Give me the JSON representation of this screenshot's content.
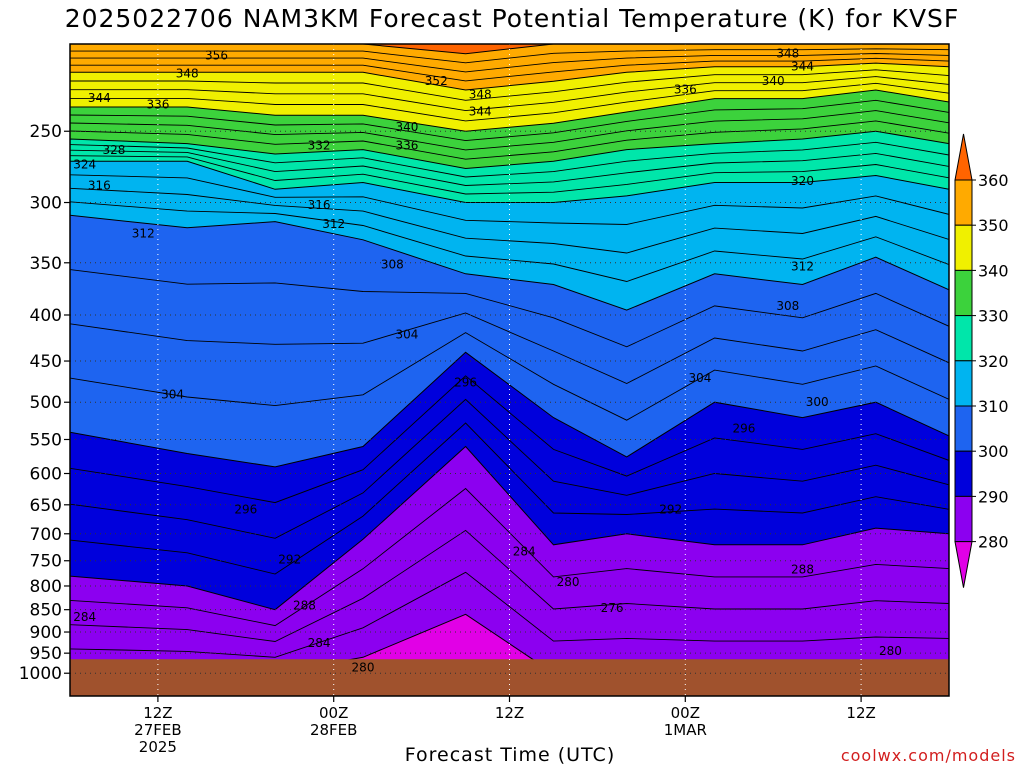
{
  "title": "2025022706 NAM3KM Forecast Potential Temperature (K) for KVSF",
  "xlabel": "Forecast Time (UTC)",
  "credit": "coolwx.com/models",
  "chart_data": {
    "type": "filled-contour",
    "title": "2025022706 NAM3KM Forecast Potential Temperature (K) for KVSF",
    "xlabel": "Forecast Time (UTC)",
    "ylabel": "",
    "units": "K",
    "x_range_hours": [
      0,
      60
    ],
    "y_axis": {
      "name": "pressure",
      "units": "hPa",
      "scale": "log",
      "reversed": true,
      "range": [
        1060,
        200
      ]
    },
    "y_ticks": [
      250,
      300,
      350,
      400,
      450,
      500,
      550,
      600,
      650,
      700,
      750,
      800,
      850,
      900,
      950,
      1000
    ],
    "x_ticks": [
      {
        "hour": 6,
        "lines": [
          "12Z",
          "27FEB",
          "2025"
        ]
      },
      {
        "hour": 18,
        "lines": [
          "00Z",
          "28FEB"
        ]
      },
      {
        "hour": 30,
        "lines": [
          "12Z"
        ]
      },
      {
        "hour": 42,
        "lines": [
          "00Z",
          "1MAR"
        ]
      },
      {
        "hour": 54,
        "lines": [
          "12Z"
        ]
      }
    ],
    "grid": true,
    "colorbar": {
      "placement": "right",
      "ticks": [
        360,
        350,
        340,
        330,
        320,
        310,
        300,
        290,
        280
      ],
      "levels": [
        {
          "min": 270,
          "max": 280,
          "color": "#e100e6"
        },
        {
          "min": 280,
          "max": 290,
          "color": "#8c00f0"
        },
        {
          "min": 290,
          "max": 300,
          "color": "#0000dc"
        },
        {
          "min": 300,
          "max": 310,
          "color": "#1e64f0"
        },
        {
          "min": 310,
          "max": 320,
          "color": "#00b4f0"
        },
        {
          "min": 320,
          "max": 330,
          "color": "#00e6aa"
        },
        {
          "min": 330,
          "max": 340,
          "color": "#3cd23c"
        },
        {
          "min": 340,
          "max": 350,
          "color": "#f0f000"
        },
        {
          "min": 350,
          "max": 360,
          "color": "#ffaa00"
        },
        {
          "min": 360,
          "max": 370,
          "color": "#ff6400"
        }
      ]
    },
    "ground_color": "#a0522d",
    "pressure_profile_hPa": {
      "theta_values": [
        280,
        290,
        300,
        310,
        320,
        330,
        340,
        350,
        360
      ],
      "columns": [
        {
          "hour": 0,
          "levels": [
            1000,
            780,
            540,
            310,
            270,
            255,
            235,
            215,
            200
          ]
        },
        {
          "hour": 8,
          "levels": [
            1000,
            800,
            570,
            320,
            270,
            258,
            235,
            215,
            200
          ]
        },
        {
          "hour": 14,
          "levels": [
            1000,
            850,
            590,
            315,
            290,
            265,
            240,
            215,
            200
          ]
        },
        {
          "hour": 20,
          "levels": [
            960,
            710,
            560,
            330,
            285,
            262,
            240,
            215,
            200
          ]
        },
        {
          "hour": 27,
          "levels": [
            860,
            560,
            440,
            360,
            300,
            275,
            250,
            225,
            205
          ]
        },
        {
          "hour": 33,
          "levels": [
            1000,
            720,
            520,
            370,
            300,
            270,
            245,
            220,
            200
          ]
        },
        {
          "hour": 38,
          "levels": [
            1000,
            700,
            575,
            395,
            295,
            262,
            238,
            215,
            200
          ]
        },
        {
          "hour": 44,
          "levels": [
            1000,
            720,
            500,
            360,
            285,
            258,
            230,
            212,
            200
          ]
        },
        {
          "hour": 50,
          "levels": [
            1000,
            720,
            520,
            370,
            285,
            255,
            230,
            212,
            200
          ]
        },
        {
          "hour": 55,
          "levels": [
            1000,
            690,
            500,
            345,
            280,
            250,
            225,
            210,
            200
          ]
        },
        {
          "hour": 60,
          "levels": [
            1000,
            700,
            545,
            375,
            290,
            258,
            232,
            212,
            200
          ]
        }
      ]
    },
    "contour_labels": [
      {
        "value": 356,
        "hour": 10,
        "hPa": 208
      },
      {
        "value": 348,
        "hour": 8,
        "hPa": 218
      },
      {
        "value": 344,
        "hour": 2,
        "hPa": 232
      },
      {
        "value": 336,
        "hour": 6,
        "hPa": 236
      },
      {
        "value": 328,
        "hour": 3,
        "hPa": 265
      },
      {
        "value": 324,
        "hour": 1,
        "hPa": 275
      },
      {
        "value": 316,
        "hour": 2,
        "hPa": 290
      },
      {
        "value": 312,
        "hour": 5,
        "hPa": 328
      },
      {
        "value": 304,
        "hour": 7,
        "hPa": 495
      },
      {
        "value": 296,
        "hour": 12,
        "hPa": 665
      },
      {
        "value": 292,
        "hour": 15,
        "hPa": 755
      },
      {
        "value": 288,
        "hour": 16,
        "hPa": 850
      },
      {
        "value": 284,
        "hour": 1,
        "hPa": 875
      },
      {
        "value": 284,
        "hour": 17,
        "hPa": 935
      },
      {
        "value": 280,
        "hour": 20,
        "hPa": 995
      },
      {
        "value": 332,
        "hour": 17,
        "hPa": 262
      },
      {
        "value": 316,
        "hour": 17,
        "hPa": 305
      },
      {
        "value": 312,
        "hour": 18,
        "hPa": 320
      },
      {
        "value": 308,
        "hour": 22,
        "hPa": 355
      },
      {
        "value": 304,
        "hour": 23,
        "hPa": 425
      },
      {
        "value": 340,
        "hour": 23,
        "hPa": 250
      },
      {
        "value": 336,
        "hour": 23,
        "hPa": 262
      },
      {
        "value": 352,
        "hour": 25,
        "hPa": 222
      },
      {
        "value": 348,
        "hour": 28,
        "hPa": 230
      },
      {
        "value": 344,
        "hour": 28,
        "hPa": 240
      },
      {
        "value": 296,
        "hour": 27,
        "hPa": 480
      },
      {
        "value": 284,
        "hour": 31,
        "hPa": 740
      },
      {
        "value": 280,
        "hour": 34,
        "hPa": 800
      },
      {
        "value": 276,
        "hour": 37,
        "hPa": 855
      },
      {
        "value": 336,
        "hour": 42,
        "hPa": 227
      },
      {
        "value": 340,
        "hour": 48,
        "hPa": 222
      },
      {
        "value": 348,
        "hour": 49,
        "hPa": 207
      },
      {
        "value": 344,
        "hour": 50,
        "hPa": 214
      },
      {
        "value": 320,
        "hour": 50,
        "hPa": 287
      },
      {
        "value": 312,
        "hour": 50,
        "hPa": 357
      },
      {
        "value": 308,
        "hour": 49,
        "hPa": 395
      },
      {
        "value": 304,
        "hour": 43,
        "hPa": 475
      },
      {
        "value": 300,
        "hour": 51,
        "hPa": 505
      },
      {
        "value": 296,
        "hour": 46,
        "hPa": 540
      },
      {
        "value": 292,
        "hour": 41,
        "hPa": 665
      },
      {
        "value": 288,
        "hour": 50,
        "hPa": 775
      },
      {
        "value": 280,
        "hour": 56,
        "hPa": 955
      }
    ]
  }
}
